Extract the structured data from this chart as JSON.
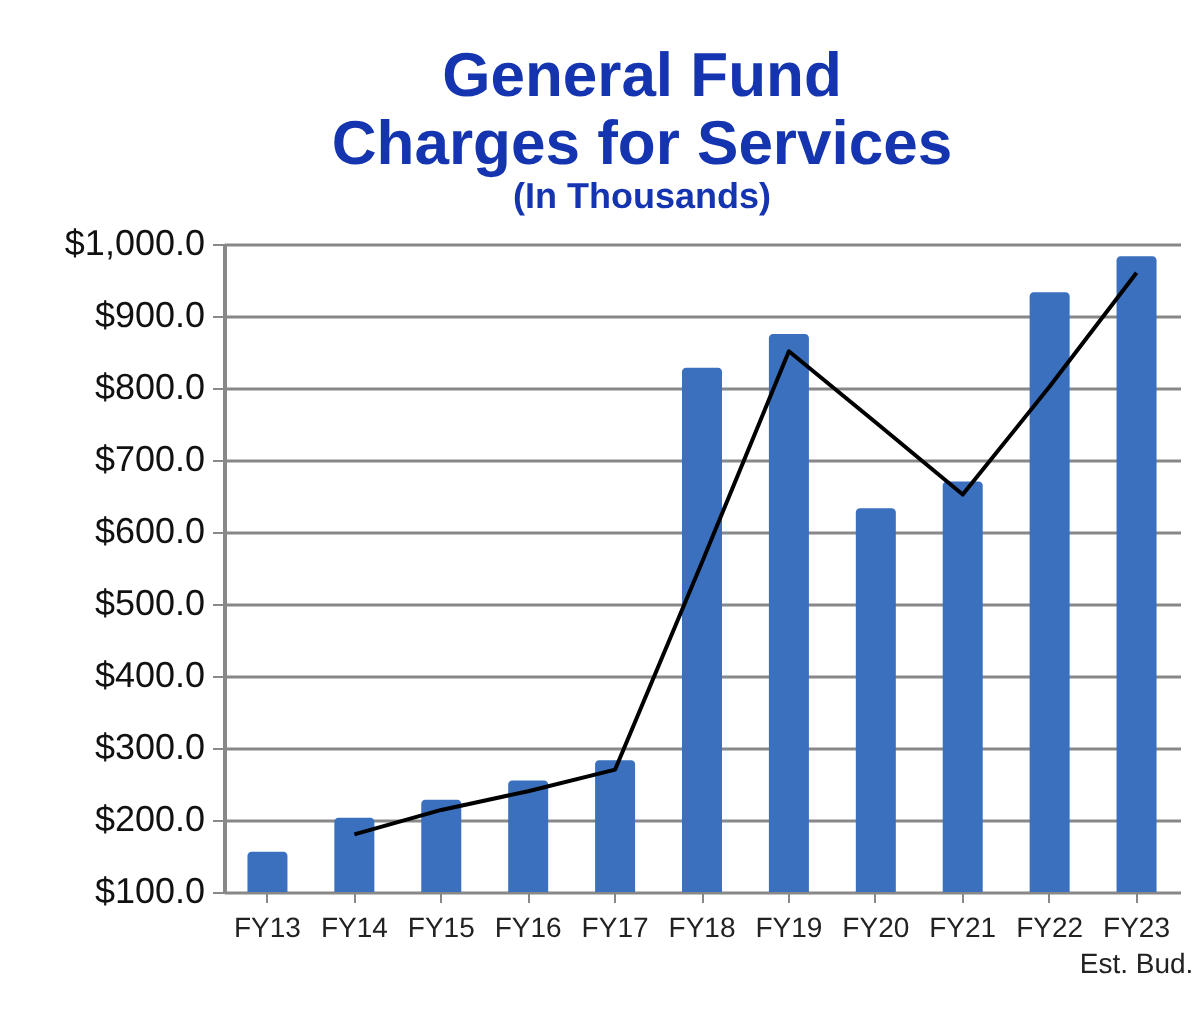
{
  "chart_data": {
    "type": "bar",
    "title": "General Fund\nCharges for Services",
    "subtitle": "(In Thousands)",
    "categories": [
      "FY13",
      "FY14",
      "FY15",
      "FY16",
      "FY17",
      "FY18",
      "FY19",
      "FY20",
      "FY21",
      "FY22",
      "FY23\nEst. Bud."
    ],
    "series": [
      {
        "color": "#3a70be",
        "values": [
          156,
          203,
          228,
          255,
          283,
          828,
          875,
          633,
          670,
          933,
          983
        ]
      },
      {
        "type": "line",
        "color": "#000000",
        "values": [
          null,
          180,
          214,
          240,
          270,
          558,
          851,
          752,
          652,
          802,
          960
        ]
      }
    ],
    "ylim": [
      100,
      1000
    ],
    "yticks": [
      {
        "value": 100,
        "label": "$100.0"
      },
      {
        "value": 200,
        "label": "$200.0"
      },
      {
        "value": 300,
        "label": "$300.0"
      },
      {
        "value": 400,
        "label": "$400.0"
      },
      {
        "value": 500,
        "label": "$500.0"
      },
      {
        "value": 600,
        "label": "$600.0"
      },
      {
        "value": 700,
        "label": "$700.0"
      },
      {
        "value": 800,
        "label": "$800.0"
      },
      {
        "value": 900,
        "label": "$900.0"
      },
      {
        "value": 1000,
        "label": "$1,000.0"
      }
    ],
    "grid": "y",
    "marker": "none"
  }
}
